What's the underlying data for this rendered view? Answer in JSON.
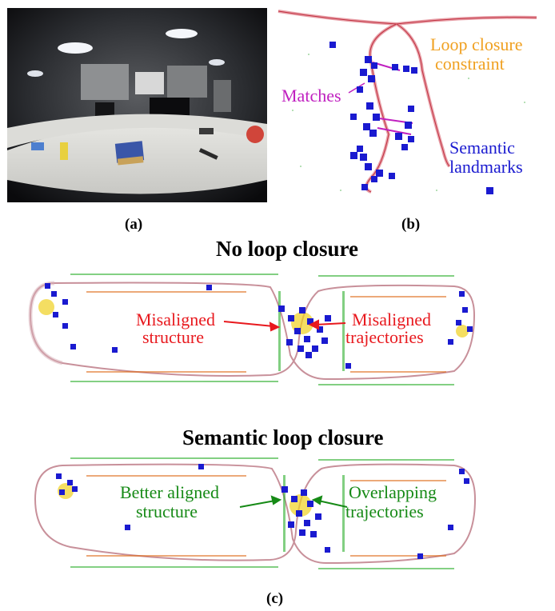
{
  "panel_a": {
    "caption": "(a)"
  },
  "panel_b": {
    "caption": "(b)",
    "labels": {
      "loop_closure_1": "Loop closure",
      "loop_closure_2": "constraint",
      "matches": "Matches",
      "semantic_1": "Semantic",
      "semantic_2": "landmarks"
    },
    "colors": {
      "loop": "#f0a020",
      "matches": "#c020c0",
      "semantic": "#1a1ad0"
    }
  },
  "panel_c": {
    "caption": "(c)",
    "top": {
      "title": "No loop closure",
      "left_label_1": "Misaligned",
      "left_label_2": "structure",
      "right_label_1": "Misaligned",
      "right_label_2": "trajectories",
      "color": "#e8191e"
    },
    "bottom": {
      "title": "Semantic loop closure",
      "left_label_1": "Better aligned",
      "left_label_2": "structure",
      "right_label_1": "Overlapping",
      "right_label_2": "trajectories",
      "color": "#168a16"
    }
  }
}
